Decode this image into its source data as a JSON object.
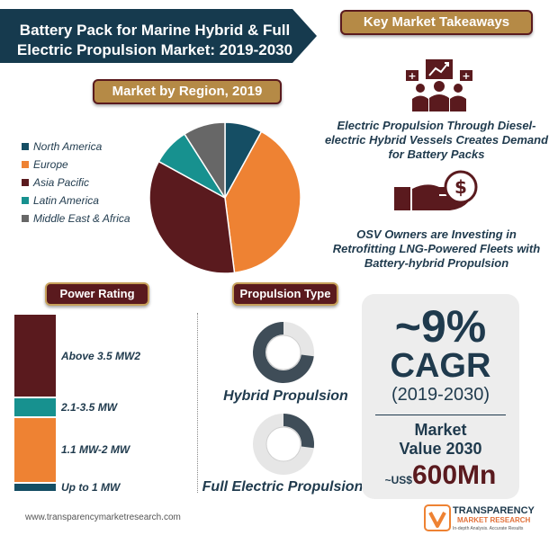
{
  "title": {
    "line1": "Battery Pack for Marine Hybrid & Full",
    "line2": "Electric Propulsion Market: 2019-2030"
  },
  "sections": {
    "key_takeaways": "Key Market Takeaways",
    "region": "Market by Region, 2019",
    "power_rating": "Power Rating",
    "propulsion_type": "Propulsion Type"
  },
  "takeaways": [
    {
      "text": "Electric Propulsion Through Diesel-electric Hybrid Vessels Creates Demand for Battery Packs",
      "icon": "presentation-people-icon"
    },
    {
      "text": "OSV Owners are Investing in Retrofitting LNG-Powered Fleets with Battery-hybrid Propulsion",
      "icon": "hand-dollar-icon"
    }
  ],
  "chart_data": [
    {
      "type": "pie",
      "title": "Market by Region, 2019",
      "categories": [
        "North America",
        "Europe",
        "Asia Pacific",
        "Latin America",
        "Middle East & Africa"
      ],
      "values": [
        8,
        40,
        35,
        8,
        9
      ],
      "colors": [
        "#154e64",
        "#ee8233",
        "#5a1a1e",
        "#17918f",
        "#676767"
      ],
      "legend": "left"
    },
    {
      "type": "bar",
      "title": "Power Rating",
      "orientation": "stacked-vertical",
      "categories": [
        "Above 3.5 MW2",
        "2.1-3.5 MW",
        "1.1 MW-2 MW",
        "Up to 1 MW"
      ],
      "values": [
        47,
        11,
        37,
        5
      ],
      "colors": [
        "#5a1a1e",
        "#17918f",
        "#ee8233",
        "#154e64"
      ]
    },
    {
      "type": "pie",
      "title": "Propulsion Type",
      "categories": [
        "Hybrid Propulsion",
        "Full Electric Propulsion"
      ],
      "values": [
        73,
        27
      ],
      "colors": [
        "#3f4d58",
        "#3f4d58"
      ]
    }
  ],
  "cagr": {
    "value": "~9%",
    "label": "CAGR",
    "period": "(2019-2030)",
    "market_label_1": "Market",
    "market_label_2": "Value 2030",
    "prefix": "~US$",
    "amount": "600Mn"
  },
  "footer": {
    "url": "www.transparencymarketresearch.com",
    "logo_name": "TRANSPARENCY",
    "logo_sub": "MARKET RESEARCH",
    "logo_tag": "In-depth Analysis. Accurate Results"
  },
  "colors": {
    "navy": "#1f3a4d",
    "maroon": "#5a1a1e",
    "gold": "#b58a46",
    "orange": "#ee8233",
    "teal": "#17918f",
    "banner": "#163a4e"
  }
}
